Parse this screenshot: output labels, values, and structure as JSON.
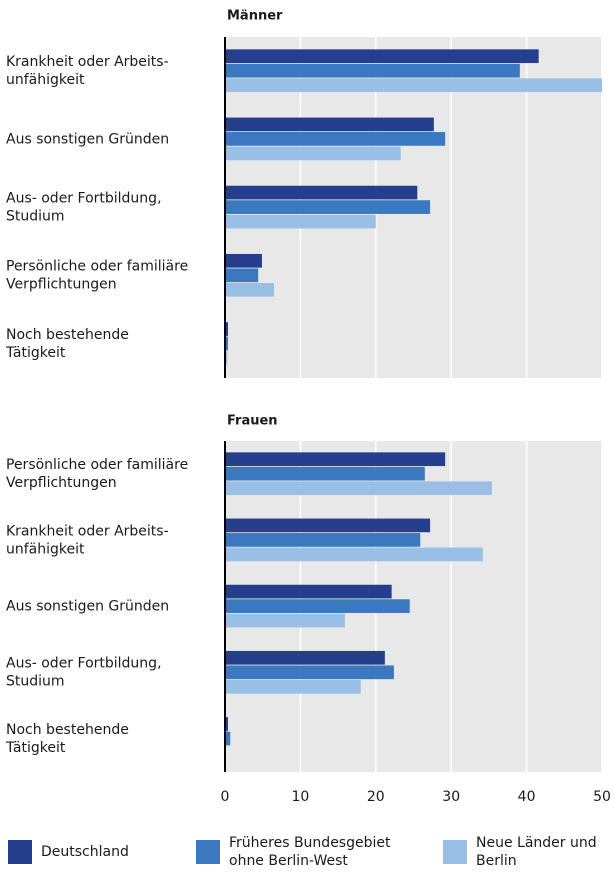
{
  "chart_data": [
    {
      "type": "bar",
      "orientation": "horizontal",
      "title": "Männer",
      "categories": [
        "Krankheit oder Arbeits-\nunfähigkeit",
        "Aus sonstigen Gründen",
        "Aus- oder Fortbildung,\nStudium",
        "Persönliche oder familiäre\nVerpflichtungen",
        "Noch bestehende\nTätigkeit"
      ],
      "series": [
        {
          "name": "Deutschland",
          "color": "#253f8e",
          "values": [
            41.6,
            27.7,
            25.5,
            4.9,
            0.4
          ]
        },
        {
          "name": "Früheres Bundesgebiet\nohne Berlin-West",
          "color": "#3a78c0",
          "values": [
            39.1,
            29.2,
            27.2,
            4.4,
            0.4
          ]
        },
        {
          "name": "Neue Länder und\nBerlin",
          "color": "#99bfe6",
          "values": [
            50,
            23.3,
            20.0,
            6.5,
            0.3
          ]
        }
      ],
      "xlim": [
        0,
        50
      ],
      "xticks": [
        0,
        10,
        20,
        30,
        40,
        50
      ],
      "grid": true
    },
    {
      "type": "bar",
      "orientation": "horizontal",
      "title": "Frauen",
      "categories": [
        "Persönliche oder familiäre\nVerpflichtungen",
        "Krankheit oder Arbeits-\nunfähigkeit",
        "Aus sonstigen Gründen",
        "Aus- oder Fortbildung,\nStudium",
        "Noch bestehende\nTätigkeit"
      ],
      "series": [
        {
          "name": "Deutschland",
          "color": "#253f8e",
          "values": [
            29.2,
            27.2,
            22.1,
            21.2,
            0.4
          ]
        },
        {
          "name": "Früheres Bundesgebiet\nohne Berlin-West",
          "color": "#3a78c0",
          "values": [
            26.5,
            25.9,
            24.5,
            22.4,
            0.7
          ]
        },
        {
          "name": "Neue Länder und\nBerlin",
          "color": "#99bfe6",
          "values": [
            35.4,
            34.2,
            15.9,
            18.0,
            0.1
          ]
        }
      ],
      "xlim": [
        0,
        50
      ],
      "xticks": [
        0,
        10,
        20,
        30,
        40,
        50
      ],
      "grid": true
    }
  ]
}
